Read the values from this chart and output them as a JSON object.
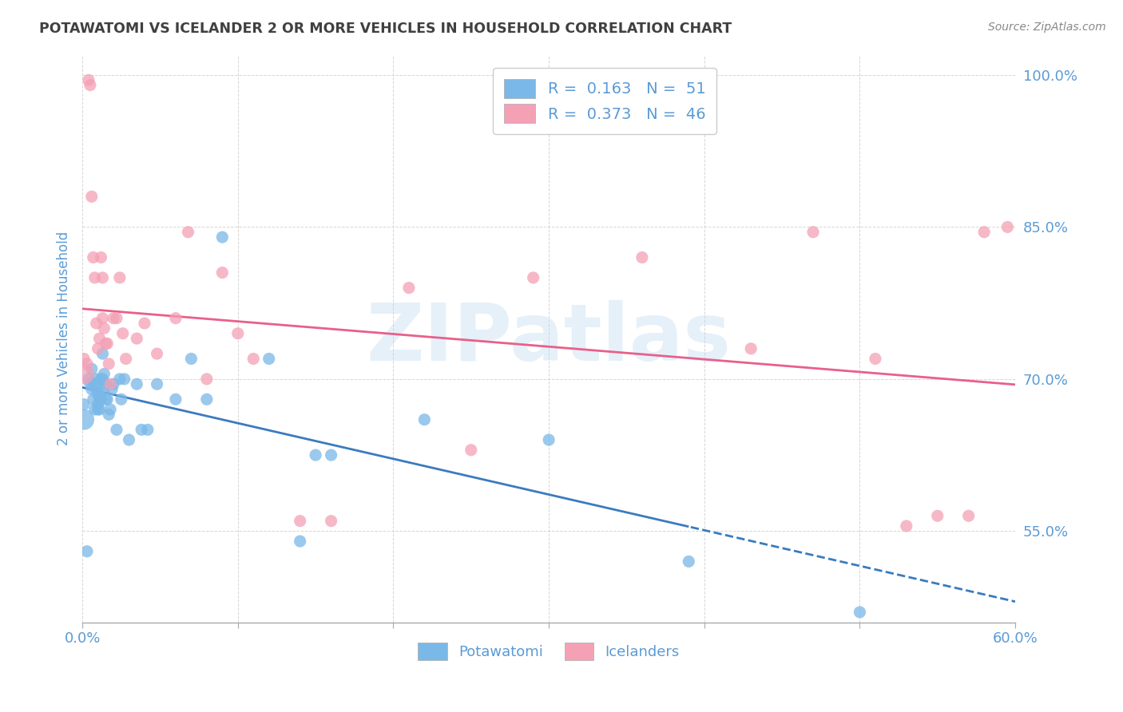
{
  "title": "POTAWATOMI VS ICELANDER 2 OR MORE VEHICLES IN HOUSEHOLD CORRELATION CHART",
  "source": "Source: ZipAtlas.com",
  "ylabel": "2 or more Vehicles in Household",
  "xlim": [
    0.0,
    0.6
  ],
  "ylim": [
    0.46,
    1.02
  ],
  "xtick_positions": [
    0.0,
    0.1,
    0.2,
    0.3,
    0.4,
    0.5,
    0.6
  ],
  "xtick_labels_show": [
    "0.0%",
    "",
    "",
    "",
    "",
    "",
    "60.0%"
  ],
  "ytick_positions": [
    0.55,
    0.7,
    0.85,
    1.0
  ],
  "ytick_labels": [
    "55.0%",
    "70.0%",
    "85.0%",
    "100.0%"
  ],
  "watermark": "ZIPatlas",
  "legend_blue_r": "R = 0.163",
  "legend_blue_n": "N = 51",
  "legend_pink_r": "R = 0.373",
  "legend_pink_n": "N = 46",
  "blue_color": "#7ab8e8",
  "pink_color": "#f4a0b5",
  "blue_line_color": "#3a7bbf",
  "pink_line_color": "#e8608a",
  "title_color": "#404040",
  "axis_label_color": "#5b9bd5",
  "tick_label_color": "#5b9bd5",
  "legend_text_color": "#5b9bd5",
  "blue_dot_size": 120,
  "pink_dot_size": 120,
  "potawatomi_x": [
    0.001,
    0.003,
    0.004,
    0.005,
    0.006,
    0.006,
    0.007,
    0.008,
    0.008,
    0.009,
    0.009,
    0.01,
    0.01,
    0.01,
    0.011,
    0.011,
    0.011,
    0.012,
    0.012,
    0.013,
    0.013,
    0.014,
    0.014,
    0.015,
    0.015,
    0.016,
    0.017,
    0.018,
    0.019,
    0.02,
    0.022,
    0.024,
    0.025,
    0.027,
    0.03,
    0.035,
    0.038,
    0.042,
    0.048,
    0.06,
    0.07,
    0.08,
    0.09,
    0.12,
    0.14,
    0.15,
    0.16,
    0.22,
    0.3,
    0.39,
    0.5
  ],
  "potawatomi_y": [
    0.675,
    0.53,
    0.7,
    0.695,
    0.71,
    0.69,
    0.68,
    0.695,
    0.67,
    0.69,
    0.7,
    0.675,
    0.67,
    0.685,
    0.685,
    0.68,
    0.67,
    0.7,
    0.68,
    0.725,
    0.7,
    0.705,
    0.69,
    0.68,
    0.695,
    0.68,
    0.665,
    0.67,
    0.69,
    0.695,
    0.65,
    0.7,
    0.68,
    0.7,
    0.64,
    0.695,
    0.65,
    0.65,
    0.695,
    0.68,
    0.72,
    0.68,
    0.84,
    0.72,
    0.54,
    0.625,
    0.625,
    0.66,
    0.64,
    0.52,
    0.47
  ],
  "icelander_x": [
    0.001,
    0.003,
    0.004,
    0.005,
    0.006,
    0.007,
    0.008,
    0.009,
    0.01,
    0.011,
    0.012,
    0.013,
    0.013,
    0.014,
    0.015,
    0.016,
    0.017,
    0.018,
    0.02,
    0.022,
    0.024,
    0.026,
    0.028,
    0.035,
    0.04,
    0.048,
    0.06,
    0.068,
    0.08,
    0.09,
    0.1,
    0.11,
    0.14,
    0.16,
    0.21,
    0.25,
    0.29,
    0.36,
    0.43,
    0.47,
    0.51,
    0.53,
    0.55,
    0.57,
    0.58,
    0.595
  ],
  "icelander_y": [
    0.72,
    0.715,
    0.995,
    0.99,
    0.88,
    0.82,
    0.8,
    0.755,
    0.73,
    0.74,
    0.82,
    0.8,
    0.76,
    0.75,
    0.735,
    0.735,
    0.715,
    0.695,
    0.76,
    0.76,
    0.8,
    0.745,
    0.72,
    0.74,
    0.755,
    0.725,
    0.76,
    0.845,
    0.7,
    0.805,
    0.745,
    0.72,
    0.56,
    0.56,
    0.79,
    0.63,
    0.8,
    0.82,
    0.73,
    0.845,
    0.72,
    0.555,
    0.565,
    0.565,
    0.845,
    0.85
  ],
  "blue_dot_large_x": [
    0.001
  ],
  "blue_dot_large_y": [
    0.66
  ],
  "pink_dot_large_x": [
    0.001
  ],
  "pink_dot_large_y": [
    0.705
  ]
}
